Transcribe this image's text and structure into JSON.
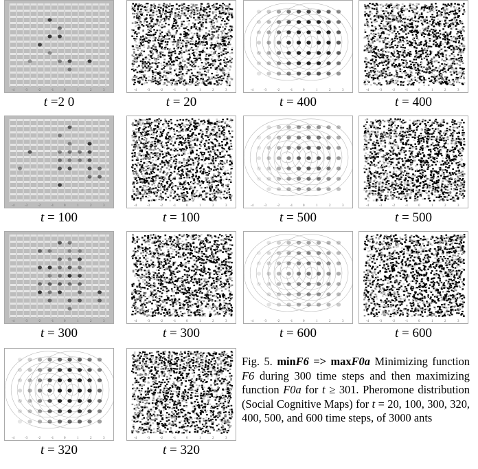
{
  "panels": [
    {
      "id": "p1",
      "kind": "grid",
      "var": "t",
      "sep": " =",
      "value": "2 0",
      "display": "t =2 0"
    },
    {
      "id": "p2",
      "kind": "noise",
      "var": "t",
      "sep": " = ",
      "value": "20"
    },
    {
      "id": "p3",
      "kind": "contour",
      "var": "t",
      "sep": " = ",
      "value": "400"
    },
    {
      "id": "p4",
      "kind": "noise",
      "var": "t",
      "sep": " = ",
      "value": "400"
    },
    {
      "id": "p5",
      "kind": "grid",
      "var": "t",
      "sep": " = ",
      "value": "100"
    },
    {
      "id": "p6",
      "kind": "noise",
      "var": "t",
      "sep": " = ",
      "value": "100"
    },
    {
      "id": "p7",
      "kind": "contour",
      "var": "t",
      "sep": " = ",
      "value": "500"
    },
    {
      "id": "p8",
      "kind": "noise",
      "var": "t",
      "sep": " = ",
      "value": "500"
    },
    {
      "id": "p9",
      "kind": "grid",
      "var": "t",
      "sep": " = ",
      "value": "300"
    },
    {
      "id": "p10",
      "kind": "noise",
      "var": "t",
      "sep": " = ",
      "value": "300"
    },
    {
      "id": "p11",
      "kind": "contour",
      "var": "t",
      "sep": " = ",
      "value": "600"
    },
    {
      "id": "p12",
      "kind": "noise",
      "var": "t",
      "sep": " = ",
      "value": "600"
    },
    {
      "id": "p13",
      "kind": "contour",
      "var": "t",
      "sep": " = ",
      "value": "320"
    },
    {
      "id": "p14",
      "kind": "noise",
      "var": "t",
      "sep": " = ",
      "value": "320"
    }
  ],
  "figure_caption": {
    "label": "Fig. 5.",
    "title_min": "min",
    "title_f6": "F6",
    "arrow": "=>",
    "title_max": "max",
    "title_f0a": "F0a",
    "text_1": "Minimizing function ",
    "f6": "F6",
    "text_2": " during 300 time steps and then maximizing function ",
    "f0a": "F0a",
    "text_3": " for ",
    "t": "t",
    "text_4": " ≥ 301. Pheromone distribution (Social Cognitive Maps) for ",
    "text_5": " = 20, 100, 300, 320, 400, 500, and 600 time steps, of 3000 ants"
  }
}
